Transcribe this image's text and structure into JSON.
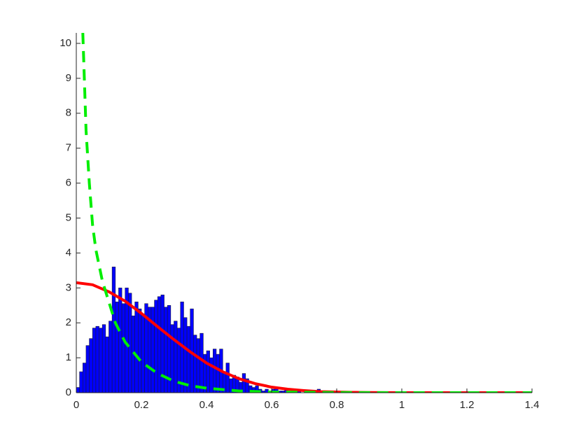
{
  "chart_data": {
    "type": "histogram",
    "bins": [
      0,
      0.01,
      0.02,
      0.03,
      0.04,
      0.05,
      0.06,
      0.07,
      0.08,
      0.09,
      0.1,
      0.11,
      0.12,
      0.13,
      0.14,
      0.15,
      0.16,
      0.17,
      0.18,
      0.19,
      0.2,
      0.21,
      0.22,
      0.23,
      0.24,
      0.25,
      0.26,
      0.27,
      0.28,
      0.29,
      0.3,
      0.31,
      0.32,
      0.33,
      0.34,
      0.35,
      0.36,
      0.37,
      0.38,
      0.39,
      0.4,
      0.41,
      0.42,
      0.43,
      0.44,
      0.45,
      0.46,
      0.47,
      0.48,
      0.49,
      0.5,
      0.51,
      0.52,
      0.53,
      0.54,
      0.55,
      0.56,
      0.57,
      0.58,
      0.59,
      0.6,
      0.61,
      0.62,
      0.63,
      0.64,
      0.65,
      0.66,
      0.67,
      0.68,
      0.69,
      0.7,
      0.71,
      0.72,
      0.73,
      0.74,
      0.75
    ],
    "values": [
      0.15,
      0.6,
      0.85,
      1.35,
      1.55,
      1.85,
      1.9,
      1.85,
      1.95,
      1.6,
      2.05,
      3.6,
      2.6,
      3.0,
      2.55,
      3.0,
      2.85,
      2.2,
      2.6,
      2.4,
      2.25,
      2.55,
      2.45,
      2.45,
      2.65,
      2.75,
      2.8,
      2.45,
      2.5,
      1.95,
      2.05,
      1.85,
      2.6,
      2.15,
      1.9,
      2.4,
      1.65,
      1.55,
      1.7,
      1.1,
      1.2,
      1.0,
      1.25,
      1.1,
      1.25,
      0.6,
      0.85,
      0.4,
      0.5,
      0.45,
      0.3,
      0.55,
      0.4,
      0.2,
      0.15,
      0.2,
      0.1,
      0.05,
      0.1,
      0.05,
      0.1,
      0.15,
      0.05,
      0.05,
      0.1,
      0.02,
      0.05,
      0.02,
      0.05,
      0,
      0.05,
      0,
      0.02,
      0.03,
      0.1
    ],
    "color": "#0000ff",
    "edge_color": "#1a1a3a",
    "lines": [
      {
        "color": "#ff0000",
        "dash": "solid",
        "x": [
          0,
          0.05,
          0.1,
          0.15,
          0.2,
          0.25,
          0.3,
          0.35,
          0.4,
          0.45,
          0.5,
          0.55,
          0.6,
          0.65,
          0.7,
          0.75,
          0.8,
          0.85,
          0.9,
          0.95,
          1.0,
          1.05,
          1.1,
          1.15,
          1.2,
          1.25,
          1.3,
          1.35,
          1.4
        ],
        "values": [
          3.15,
          3.09,
          2.89,
          2.62,
          2.27,
          1.89,
          1.52,
          1.17,
          0.85,
          0.6,
          0.4,
          0.26,
          0.16,
          0.1,
          0.06,
          0.03,
          0.02,
          0.01,
          0.005,
          0.003,
          0.001,
          0,
          0,
          0,
          0,
          0,
          0,
          0,
          0
        ]
      },
      {
        "color": "#00ee00",
        "dash": "dashed",
        "x": [
          0.02,
          0.03,
          0.04,
          0.05,
          0.06,
          0.08,
          0.1,
          0.12,
          0.15,
          0.2,
          0.25,
          0.3,
          0.35,
          0.4,
          0.5,
          0.6,
          0.8,
          1.0,
          1.2,
          1.4
        ],
        "values": [
          10.3,
          7.5,
          6.0,
          4.8,
          4.1,
          3.2,
          2.6,
          2.0,
          1.45,
          0.88,
          0.55,
          0.33,
          0.2,
          0.13,
          0.05,
          0.02,
          0.005,
          0,
          0,
          0
        ]
      }
    ],
    "xlim": [
      0,
      1.4
    ],
    "ylim": [
      0,
      10.3
    ],
    "xticks": [
      0,
      0.2,
      0.4,
      0.6,
      0.8,
      1,
      1.2,
      1.4
    ],
    "yticks": [
      0,
      1,
      2,
      3,
      4,
      5,
      6,
      7,
      8,
      9,
      10
    ]
  }
}
